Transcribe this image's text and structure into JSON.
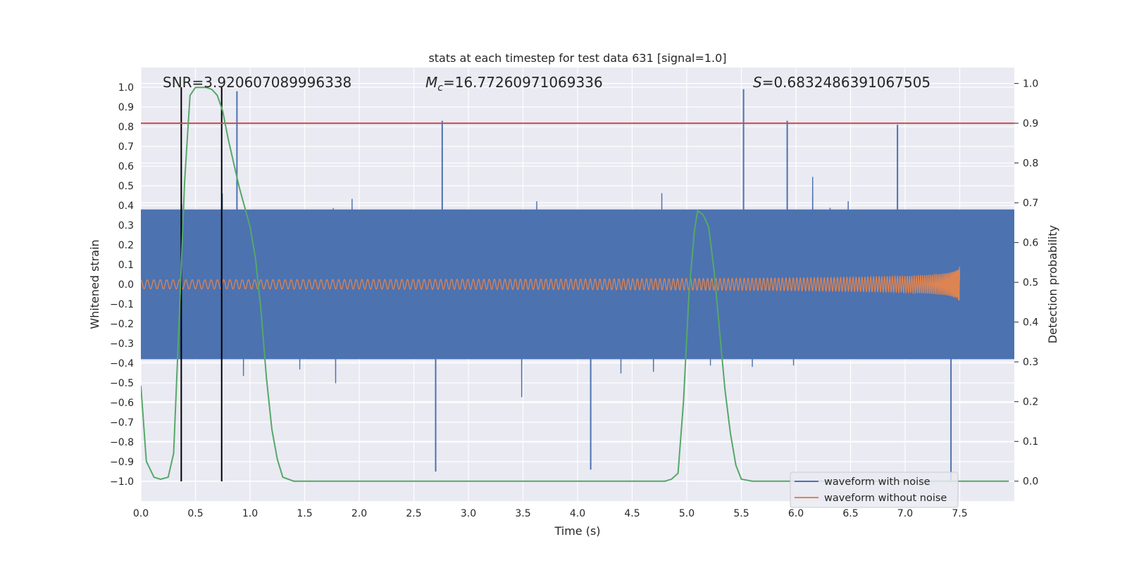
{
  "chart_data": {
    "type": "line",
    "title": "stats at each timestep for test data 631 [signal=1.0]",
    "xlabel": "Time (s)",
    "ylabel": "Whitened strain",
    "y2label": "Detection probability",
    "xlim": [
      0.0,
      8.0
    ],
    "ylim": [
      -1.1,
      1.1
    ],
    "y2lim": [
      -0.05,
      1.04
    ],
    "xticks": [
      "0.0",
      "0.5",
      "1.0",
      "1.5",
      "2.0",
      "2.5",
      "3.0",
      "3.5",
      "4.0",
      "4.5",
      "5.0",
      "5.5",
      "6.0",
      "6.5",
      "7.0",
      "7.5"
    ],
    "yticks": [
      "−1.0",
      "−0.9",
      "−0.8",
      "−0.7",
      "−0.6",
      "−0.5",
      "−0.4",
      "−0.3",
      "−0.2",
      "−0.1",
      "0.0",
      "0.1",
      "0.2",
      "0.3",
      "0.4",
      "0.5",
      "0.6",
      "0.7",
      "0.8",
      "0.9",
      "1.0"
    ],
    "y2ticks": [
      "0.0",
      "0.1",
      "0.2",
      "0.3",
      "0.4",
      "0.5",
      "0.6",
      "0.7",
      "0.8",
      "0.9",
      "1.0"
    ],
    "grid": true,
    "legend_position": "lower-right",
    "annotations": {
      "snr": "SNR=3.920607089996338",
      "mc_symbol": "M",
      "mc_sub": "c",
      "mc_value": "=16.77260971069336",
      "s_symbol": "S",
      "s_value": "=0.6832486391067505"
    },
    "threshold": {
      "y2": 0.9,
      "color": "#c44e52"
    },
    "vertical_markers": [
      {
        "x": 0.37,
        "color": "#000000"
      },
      {
        "x": 0.74,
        "color": "#000000"
      }
    ],
    "series": [
      {
        "name": "waveform with noise",
        "color": "#4c72b0",
        "axis": "left",
        "description_values": "noise",
        "envelope_max": 0.98,
        "spikes": [
          [
            0.88,
            0.98
          ],
          [
            5.52,
            0.99
          ],
          [
            2.76,
            0.83
          ],
          [
            2.7,
            -0.95
          ],
          [
            7.42,
            -1.0
          ],
          [
            6.93,
            0.81
          ],
          [
            5.92,
            0.83
          ],
          [
            4.12,
            -0.94
          ]
        ]
      },
      {
        "name": "waveform without noise",
        "color": "#dd8452",
        "axis": "left",
        "chirp_end": 7.5,
        "chirp_peak": 0.16
      },
      {
        "name": "",
        "color": "#55a868",
        "axis": "right",
        "x": [
          0.0,
          0.05,
          0.12,
          0.18,
          0.25,
          0.3,
          0.35,
          0.4,
          0.45,
          0.5,
          0.55,
          0.6,
          0.65,
          0.7,
          0.75,
          0.8,
          0.85,
          0.9,
          0.95,
          1.0,
          1.05,
          1.1,
          1.15,
          1.2,
          1.25,
          1.3,
          1.4,
          2.0,
          3.0,
          4.0,
          4.6,
          4.8,
          4.86,
          4.92,
          4.97,
          5.02,
          5.07,
          5.1,
          5.15,
          5.2,
          5.25,
          5.3,
          5.35,
          5.4,
          5.45,
          5.5,
          5.6,
          6.0,
          7.0,
          7.95
        ],
        "y": [
          0.24,
          0.05,
          0.01,
          0.005,
          0.01,
          0.07,
          0.4,
          0.75,
          0.97,
          0.99,
          0.99,
          0.99,
          0.985,
          0.97,
          0.93,
          0.86,
          0.8,
          0.74,
          0.69,
          0.64,
          0.56,
          0.43,
          0.26,
          0.13,
          0.055,
          0.01,
          0.0,
          0.0,
          0.0,
          0.0,
          0.0,
          0.0,
          0.005,
          0.02,
          0.2,
          0.47,
          0.63,
          0.68,
          0.67,
          0.64,
          0.53,
          0.38,
          0.23,
          0.12,
          0.04,
          0.005,
          0.0,
          0.0,
          0.0,
          0.0
        ]
      }
    ]
  }
}
